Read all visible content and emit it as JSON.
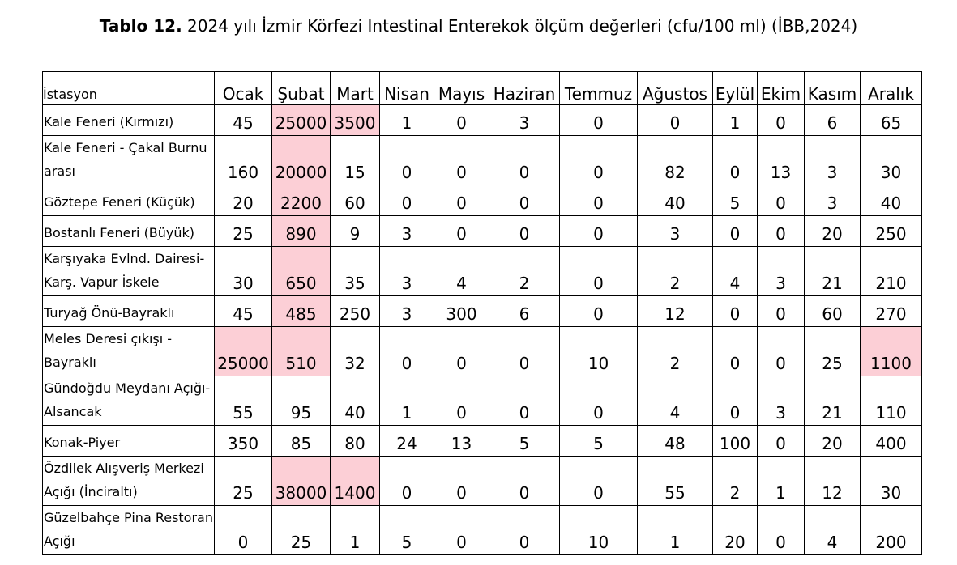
{
  "title": {
    "bold": "Tablo 12.",
    "text": " 2024 yılı İzmir Körfezi Intestinal Enterekok ölçüm değerleri (cfu/100 ml) (İBB,2024)"
  },
  "colors": {
    "highlight": "#fccfd6"
  },
  "table": {
    "station_header": "İstasyon",
    "months": [
      "Ocak",
      "Şubat",
      "Mart",
      "Nisan",
      "Mayıs",
      "Haziran",
      "Temmuz",
      "Ağustos",
      "Eylül",
      "Ekim",
      "Kasım",
      "Aralık"
    ],
    "rows": [
      {
        "station": "Kale Feneri (Kırmızı)",
        "values": [
          "45",
          "25000",
          "3500",
          "1",
          "0",
          "3",
          "0",
          "0",
          "1",
          "0",
          "6",
          "65"
        ],
        "highlight": [
          false,
          true,
          true,
          false,
          false,
          false,
          false,
          false,
          false,
          false,
          false,
          false
        ]
      },
      {
        "station": "Kale Feneri - Çakal Burnu arası",
        "values": [
          "160",
          "20000",
          "15",
          "0",
          "0",
          "0",
          "0",
          "82",
          "0",
          "13",
          "3",
          "30"
        ],
        "highlight": [
          false,
          true,
          false,
          false,
          false,
          false,
          false,
          false,
          false,
          false,
          false,
          false
        ]
      },
      {
        "station": "Göztepe Feneri (Küçük)",
        "values": [
          "20",
          "2200",
          "60",
          "0",
          "0",
          "0",
          "0",
          "40",
          "5",
          "0",
          "3",
          "40"
        ],
        "highlight": [
          false,
          true,
          false,
          false,
          false,
          false,
          false,
          false,
          false,
          false,
          false,
          false
        ]
      },
      {
        "station": "Bostanlı Feneri (Büyük)",
        "values": [
          "25",
          "890",
          "9",
          "3",
          "0",
          "0",
          "0",
          "3",
          "0",
          "0",
          "20",
          "250"
        ],
        "highlight": [
          false,
          true,
          false,
          false,
          false,
          false,
          false,
          false,
          false,
          false,
          false,
          false
        ]
      },
      {
        "station": "Karşıyaka Evlnd. Dairesi-Karş. Vapur İskele",
        "values": [
          "30",
          "650",
          "35",
          "3",
          "4",
          "2",
          "0",
          "2",
          "4",
          "3",
          "21",
          "210"
        ],
        "highlight": [
          false,
          true,
          false,
          false,
          false,
          false,
          false,
          false,
          false,
          false,
          false,
          false
        ]
      },
      {
        "station": " Turyağ Önü-Bayraklı",
        "values": [
          "45",
          "485",
          "250",
          "3",
          "300",
          "6",
          "0",
          "12",
          "0",
          "0",
          "60",
          "270"
        ],
        "highlight": [
          false,
          true,
          false,
          false,
          false,
          false,
          false,
          false,
          false,
          false,
          false,
          false
        ]
      },
      {
        "station": "Meles Deresi çıkışı - Bayraklı",
        "values": [
          "25000",
          "510",
          "32",
          "0",
          "0",
          "0",
          "10",
          "2",
          "0",
          "0",
          "25",
          "1100"
        ],
        "highlight": [
          true,
          true,
          false,
          false,
          false,
          false,
          false,
          false,
          false,
          false,
          false,
          true
        ]
      },
      {
        "station": "Gündoğdu Meydanı Açığı- Alsancak",
        "values": [
          "55",
          "95",
          "40",
          "1",
          "0",
          "0",
          "0",
          "4",
          "0",
          "3",
          "21",
          "110"
        ],
        "highlight": [
          false,
          false,
          false,
          false,
          false,
          false,
          false,
          false,
          false,
          false,
          false,
          false
        ]
      },
      {
        "station": " Konak-Piyer",
        "values": [
          "350",
          "85",
          "80",
          "24",
          "13",
          "5",
          "5",
          "48",
          "100",
          "0",
          "20",
          "400"
        ],
        "highlight": [
          false,
          false,
          false,
          false,
          false,
          false,
          false,
          false,
          false,
          false,
          false,
          false
        ]
      },
      {
        "station": "Özdilek Alışveriş Merkezi Açığı (İnciraltı)",
        "values": [
          "25",
          "38000",
          "1400",
          "0",
          "0",
          "0",
          "0",
          "55",
          "2",
          "1",
          "12",
          "30"
        ],
        "highlight": [
          false,
          true,
          true,
          false,
          false,
          false,
          false,
          false,
          false,
          false,
          false,
          false
        ]
      },
      {
        "station": "Güzelbahçe Pina Restoran Açığı",
        "values": [
          "0",
          "25",
          "1",
          "5",
          "0",
          "0",
          "10",
          "1",
          "20",
          "0",
          "4",
          "200"
        ],
        "highlight": [
          false,
          false,
          false,
          false,
          false,
          false,
          false,
          false,
          false,
          false,
          false,
          false
        ]
      }
    ]
  }
}
